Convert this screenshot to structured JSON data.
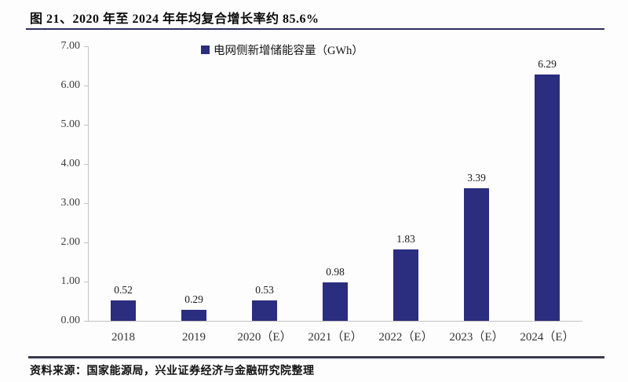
{
  "header": {
    "title": "图 21、2020 年至 2024 年年均复合增长率约 85.6%"
  },
  "legend": {
    "label": "电网侧新增储能容量（GWh）"
  },
  "footer": {
    "source_note": "资料来源：国家能源局，兴业证券经济与金融研究院整理"
  },
  "colors": {
    "bar": "#2b2d7e",
    "legend_marker": "#2b2d7e",
    "title_rule": "#2e2e5e",
    "bottom_rule": "#3a3a50",
    "axis_line": "#c2c2c2",
    "tick_text": "#3d3d3d"
  },
  "chart_data": {
    "type": "bar",
    "title": "图 21、2020 年至 2024 年年均复合增长率约 85.6%",
    "legend_entries": [
      "电网侧新增储能容量（GWh）"
    ],
    "legend_position": "top-center",
    "categories": [
      "2018",
      "2019",
      "2020（E）",
      "2021（E）",
      "2022（E）",
      "2023（E）",
      "2024（E）"
    ],
    "values": [
      0.52,
      0.29,
      0.53,
      0.98,
      1.83,
      3.39,
      6.29
    ],
    "value_labels": [
      "0.52",
      "0.29",
      "0.53",
      "0.98",
      "1.83",
      "3.39",
      "6.29"
    ],
    "xlabel": "",
    "ylabel": "",
    "ylim": [
      0,
      7
    ],
    "ytick_step": 1,
    "ytick_labels": [
      "0.00",
      "1.00",
      "2.00",
      "3.00",
      "4.00",
      "5.00",
      "6.00",
      "7.00"
    ],
    "grid": false
  }
}
